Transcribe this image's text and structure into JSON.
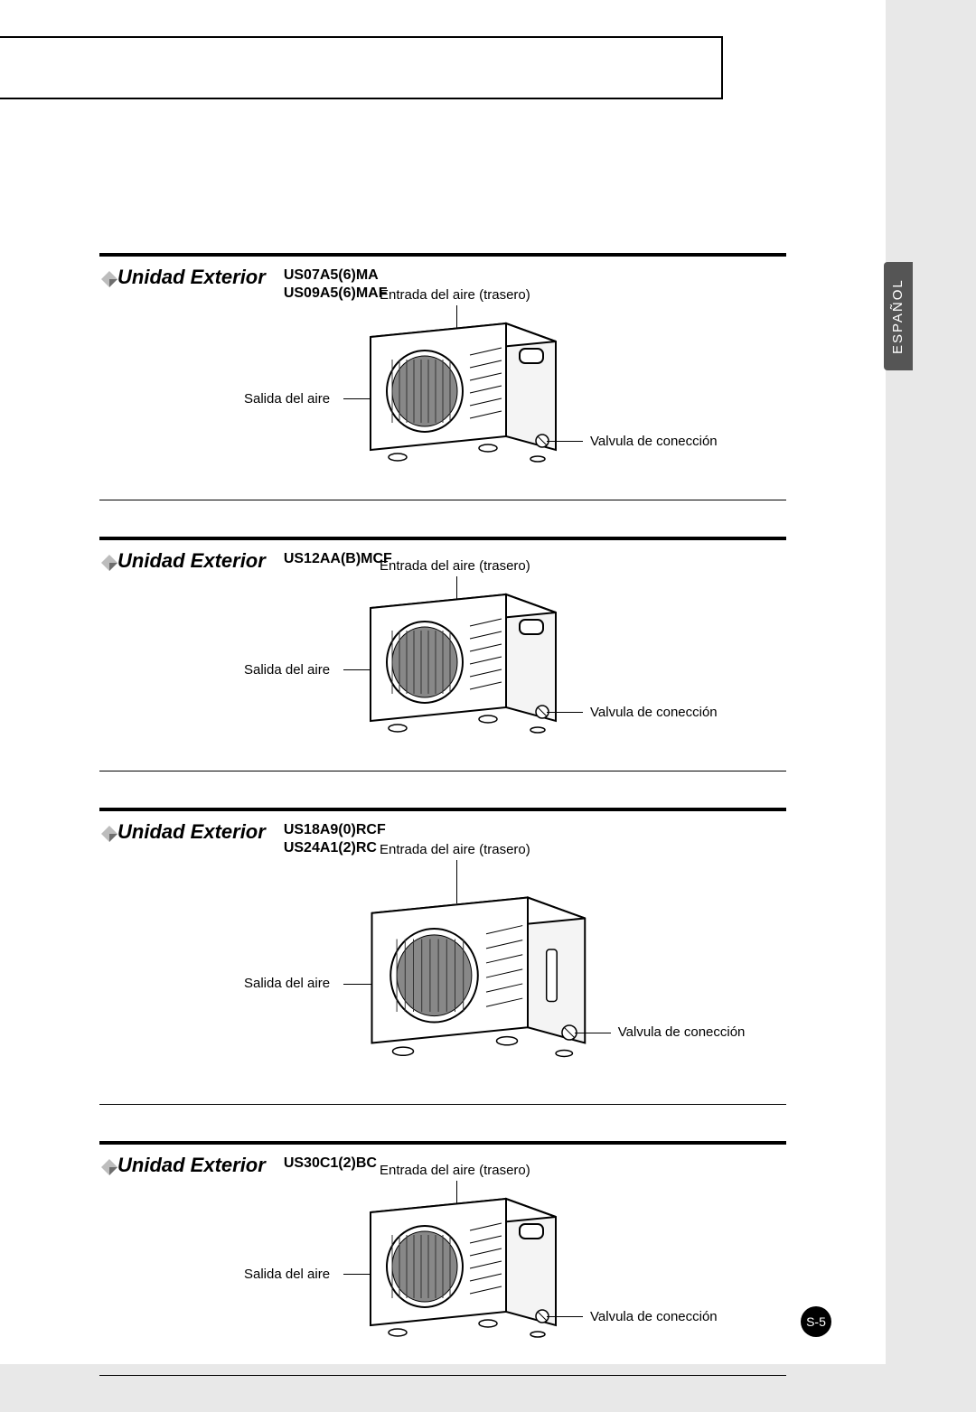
{
  "language_tab": "ESPAÑOL",
  "page_number": "S-5",
  "labels": {
    "air_inlet": "Entrada del aire (trasero)",
    "air_outlet": "Salida del aire",
    "valve": "Valvula de conección"
  },
  "sections": [
    {
      "title": "Unidad Exterior",
      "models": [
        "US07A5(6)MA",
        "US09A5(6)MAF"
      ],
      "has_handle": true
    },
    {
      "title": "Unidad Exterior",
      "models": [
        "US12AA(B)MCF"
      ],
      "has_handle": true
    },
    {
      "title": "Unidad Exterior",
      "models": [
        "US18A9(0)RCF",
        "US24A1(2)RC"
      ],
      "has_handle": false,
      "tall": true
    },
    {
      "title": "Unidad Exterior",
      "models": [
        "US30C1(2)BC"
      ],
      "has_handle": true
    }
  ],
  "colors": {
    "page_bg": "#ffffff",
    "outer_bg": "#e8e8e8",
    "tab_bg": "#555555",
    "line": "#000000"
  }
}
